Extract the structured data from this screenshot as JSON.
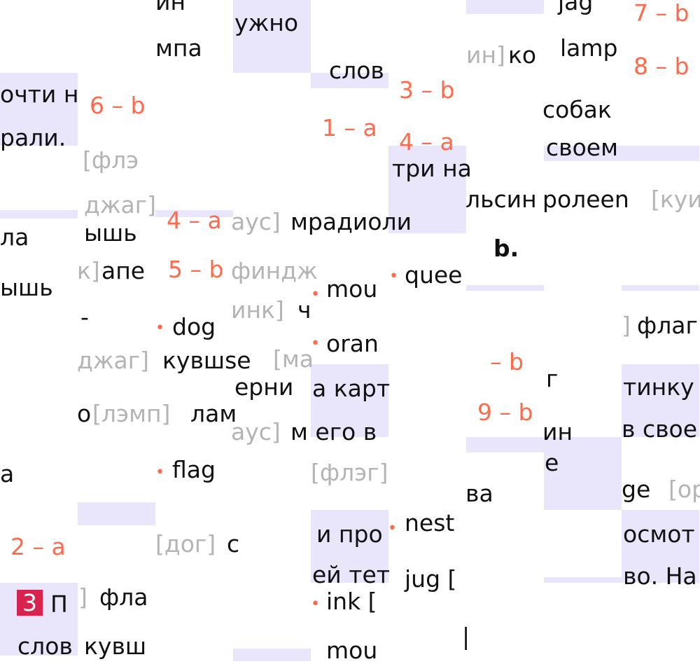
{
  "fragments": {
    "f1": "ин",
    "f2": "ужно",
    "f3": "•",
    "f4": "jag",
    "f5": "7 – b",
    "f6": "мпа",
    "f7": "ин]",
    "f8": "ко",
    "f9": "lamp",
    "f10": "8 – b",
    "f11": "очти н",
    "f12": "рали.",
    "f13": "6 – b",
    "f14": "слов",
    "f15": "3 – b",
    "f16": "собак",
    "f17": "1 – a",
    "f18": "[флэ",
    "f19": "4 – a",
    "f20": "три на",
    "f21": "своем",
    "f22": "льсин",
    "f23": "ролеen",
    "f24": "[куи",
    "f25": "джаг]",
    "f26": "ышь",
    "f27": "4 – a",
    "f28": "аус]",
    "f29": "мрадиоли",
    "f30": "ла",
    "f31": "b.",
    "f32": "к]",
    "f33": "апе",
    "f34": "5 – b",
    "f35": "финдж",
    "f36": "quee",
    "f37": "ышь",
    "f38": "-",
    "f39": "dog",
    "f40": "инк]",
    "f41": "ч",
    "f42": "mou",
    "f43": "]",
    "f44": "флаг",
    "f45": "oran",
    "f46": "джаг]",
    "f47": "кувшse",
    "f48": "[ма",
    "f49": "ерни",
    "f50": "а карт",
    "f51": "– b",
    "f52": "г",
    "f53": "тинку",
    "f54": "9 – b",
    "f55": "о",
    "f56": "[лэмп]",
    "f57": "лам",
    "f58": "аус]",
    "f59": "м его в",
    "f60": "ин",
    "f61": "в свое",
    "f62": "е",
    "f63": "а",
    "f64": "flag",
    "f65": "[флэг]",
    "f66": "ва",
    "f67": "ge",
    "f68": "[ор",
    "f69": "и про",
    "f70": "nest",
    "f71": "осмот",
    "f72": "2 – a",
    "f73": "[дог]",
    "f74": "с",
    "f75": "ей тет",
    "f76": "jug [",
    "f77": "во. На",
    "f78": "3",
    "f79": "П",
    "f80": "]",
    "f81": "фла",
    "f82": "ink [",
    "f83": "слов",
    "f84": "кувш",
    "f85": "mou",
    "f86": "|"
  },
  "colors": {
    "accent": "#ff6a4a",
    "highlight": "#e9e6fc",
    "badge": "#d8234f",
    "transcription": "#b4b4b4"
  }
}
